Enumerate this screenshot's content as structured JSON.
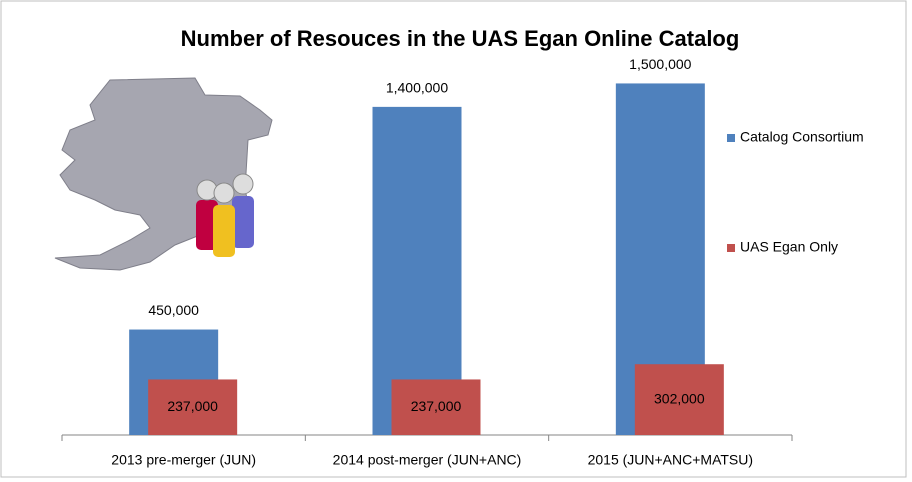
{
  "chart_data": {
    "type": "bar",
    "title": "Number of Resouces in the UAS Egan Online Catalog",
    "categories": [
      "2013 pre-merger (JUN)",
      "2014 post-merger (JUN+ANC)",
      "2015 (JUN+ANC+MATSU)"
    ],
    "series": [
      {
        "name": "Catalog Consortium",
        "color": "#4f81bd",
        "values": [
          450000,
          1400000,
          1500000
        ],
        "value_labels": [
          "450,000",
          "1,400,000",
          "1,500,000"
        ]
      },
      {
        "name": "UAS Egan Only",
        "color": "#c0504d",
        "values": [
          237000,
          237000,
          302000
        ],
        "value_labels": [
          "237,000",
          "237,000",
          "302,000"
        ]
      }
    ],
    "ylim": [
      0,
      1600000
    ],
    "legend": "right"
  }
}
